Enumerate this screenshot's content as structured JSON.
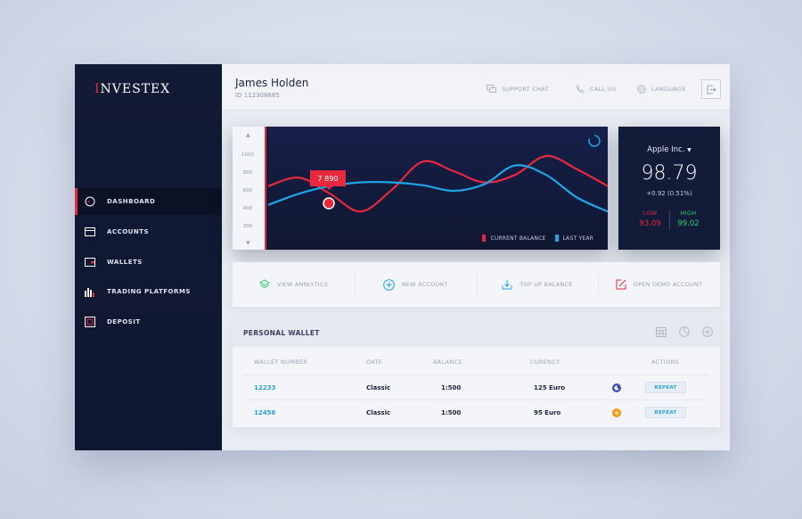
{
  "app": {
    "logo_text": "NVESTEX",
    "logo_prefix": "I"
  },
  "sidebar": {
    "items": [
      {
        "label": "DASHBOARD",
        "icon": "dashboard-icon",
        "active": true
      },
      {
        "label": "ACCOUNTS",
        "icon": "card-icon",
        "active": false
      },
      {
        "label": "WALLETS",
        "icon": "wallet-icon",
        "active": false
      },
      {
        "label": "TRADING PLATFORMS",
        "icon": "bar-chart-icon",
        "active": false
      },
      {
        "label": "DEPOSIT",
        "icon": "deposit-icon",
        "active": false
      }
    ]
  },
  "header": {
    "user_name": "James Holden",
    "user_id_label": "ID",
    "user_id": "112308685",
    "support_chat": "SUPPORT CHAT",
    "call_us": "CALL US",
    "language": "LANGUAGE"
  },
  "chart_data": {
    "type": "line",
    "yticks": [
      "1000",
      "800",
      "600",
      "400",
      "200"
    ],
    "ylim": [
      0,
      1100
    ],
    "tooltip": "7 890",
    "series": [
      {
        "name": "CURRENT BALANCE",
        "color": "#e8283c",
        "values": [
          600,
          690,
          520,
          330,
          560,
          860,
          760,
          640,
          720,
          920,
          780,
          600
        ]
      },
      {
        "name": "LAST YEAR",
        "color": "#1fa6e8",
        "values": [
          400,
          520,
          600,
          640,
          640,
          610,
          550,
          620,
          820,
          720,
          480,
          330
        ]
      }
    ]
  },
  "stock": {
    "name": "Apple Inc.",
    "price": "98.79",
    "change": "+0.92  (0.51%)",
    "low_label": "LOW",
    "low": "93.09",
    "high_label": "HIGH",
    "high": "99.02",
    "low_color": "#e8283c",
    "high_color": "#2ecc71"
  },
  "actions": [
    {
      "label": "VIEW ANNLYTICS",
      "icon": "layers-icon",
      "color": "#2ecc71"
    },
    {
      "label": "NEW ACCOUNT",
      "icon": "plus-circle-icon",
      "color": "#1fa6e8"
    },
    {
      "label": "TOP UP BALANCE",
      "icon": "download-icon",
      "color": "#1fa6e8"
    },
    {
      "label": "OPEN DEMO ACCOUNT",
      "icon": "edit-icon",
      "color": "#e8283c"
    }
  ],
  "wallet": {
    "title": "PERSONAL WALLET",
    "columns": [
      "WALLET NUMBER",
      "DATE",
      "BALANCE",
      "CURENCY",
      "ACTIONS"
    ],
    "rows": [
      {
        "number": "12233",
        "date": "Classic",
        "balance": "1:500",
        "currency": "125 Euro",
        "status_color": "#3f51b5",
        "action": "REPEAT"
      },
      {
        "number": "12456",
        "date": "Classic",
        "balance": "1:500",
        "currency": "95 Euro",
        "status_color": "#f39c12",
        "action": "REPEAT"
      }
    ]
  }
}
